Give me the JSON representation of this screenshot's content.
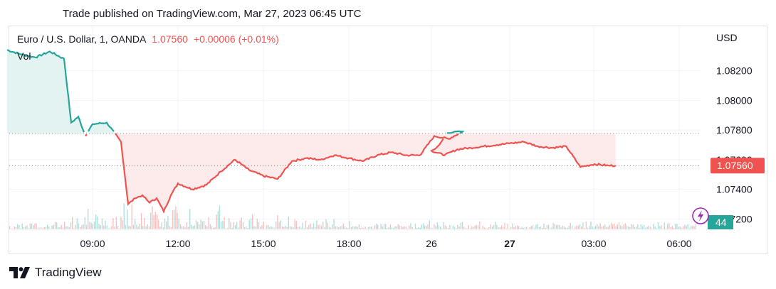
{
  "header": {
    "published": "Trade published on TradingView.com, Mar 27, 2023 06:45 UTC"
  },
  "legend": {
    "symbol": "Euro / U.S. Dollar, 1, OANDA",
    "price": "1.07560",
    "change": "+0.00006 (+0.01%)",
    "volume_label": "Vol"
  },
  "footer": {
    "brand": "TradingView",
    "logo_icon": "tradingview-logo-icon"
  },
  "colors": {
    "up": "#26a69a",
    "down": "#ef5350",
    "up_fill": "#e0f2f1",
    "down_fill": "#fde8e8",
    "grid": "#f0f3fa",
    "axis_text": "#131722"
  },
  "chart_data": {
    "type": "area",
    "symbol": "EURUSD",
    "currency": "USD",
    "y_ticks": [
      "1.08200",
      "1.08000",
      "1.07800",
      "1.07600",
      "1.07400",
      "1.07200"
    ],
    "ylim": [
      1.0713,
      1.085
    ],
    "x_ticks": [
      "09:00",
      "12:00",
      "15:00",
      "18:00",
      "26",
      "27",
      "03:00",
      "06:00"
    ],
    "bold_x_ticks": [
      "27"
    ],
    "last_price": 1.0756,
    "last_price_label": "1.07560",
    "reference_price": 1.07778,
    "volume_badge": "44",
    "series": [
      {
        "x": [
          "06:00",
          "06:30",
          "07:00",
          "07:30",
          "08:00",
          "08:15",
          "08:30",
          "08:45",
          "09:00",
          "09:30",
          "10:00",
          "10:15",
          "10:30",
          "10:45",
          "11:00",
          "11:15",
          "11:30",
          "11:45",
          "12:00",
          "12:30",
          "13:00",
          "13:30",
          "14:00",
          "14:30",
          "15:00",
          "15:30",
          "16:00",
          "16:30",
          "17:00",
          "17:30",
          "18:00",
          "18:30",
          "19:00",
          "19:30",
          "20:00",
          "20:30",
          "21:00",
          "21:30",
          "22:00",
          "22:30",
          "23:00",
          "23:30",
          "00:00",
          "00:30",
          "01:00",
          "01:30",
          "02:00",
          "02:30",
          "03:00",
          "03:30",
          "04:00",
          "04:30",
          "05:00",
          "05:30",
          "06:00",
          "06:30",
          "06:45"
        ],
        "y": [
          1.0834,
          1.0831,
          1.0829,
          1.0833,
          1.0828,
          1.0785,
          1.0789,
          1.0776,
          1.0784,
          1.0785,
          1.0772,
          1.073,
          1.0734,
          1.0736,
          1.0731,
          1.0734,
          1.0725,
          1.0736,
          1.0744,
          1.074,
          1.0743,
          1.0752,
          1.076,
          1.0753,
          1.0749,
          1.0747,
          1.0759,
          1.0761,
          1.076,
          1.0763,
          1.0761,
          1.0759,
          1.0763,
          1.0765,
          1.0763,
          1.0763,
          1.0776,
          1.0774,
          1.0779,
          1.0779,
          1.0778,
          1.077,
          1.0766,
          1.0763,
          1.0767,
          1.0768,
          1.0769,
          1.077,
          1.0771,
          1.0772,
          1.0769,
          1.0768,
          1.0769,
          1.0755,
          1.0757,
          1.0756,
          1.0756
        ]
      }
    ]
  }
}
